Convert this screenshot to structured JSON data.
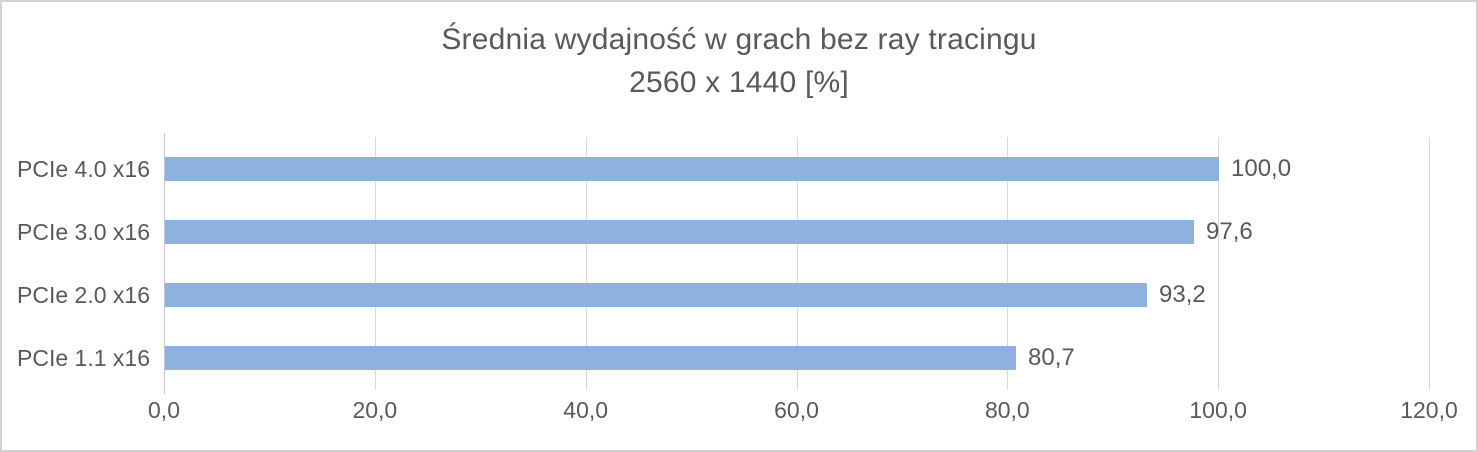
{
  "chart_data": {
    "type": "bar",
    "orientation": "horizontal",
    "title_line1": "Średnia wydajność w grach bez ray tracingu",
    "title_line2": "2560 x 1440 [%]",
    "categories": [
      "PCIe 4.0 x16",
      "PCIe 3.0 x16",
      "PCIe 2.0 x16",
      "PCIe 1.1 x16"
    ],
    "values": [
      100.0,
      97.6,
      93.2,
      80.7
    ],
    "value_labels": [
      "100,0",
      "97,6",
      "93,2",
      "80,7"
    ],
    "xlim": [
      0,
      120
    ],
    "x_ticks": [
      {
        "value": 0,
        "label": "0,0"
      },
      {
        "value": 20,
        "label": "20,0"
      },
      {
        "value": 40,
        "label": "40,0"
      },
      {
        "value": 60,
        "label": "60,0"
      },
      {
        "value": 80,
        "label": "80,0"
      },
      {
        "value": 100,
        "label": "100,0"
      },
      {
        "value": 120,
        "label": "120,0"
      }
    ],
    "grid": "vertical-only",
    "legend": "none",
    "colors": {
      "bar": "#8eb1e0",
      "text": "#595959",
      "gridline": "#d9d9d9",
      "axis_line": "#c6c6c6",
      "frame_border": "#d2d2d2",
      "background": "#ffffff"
    }
  }
}
